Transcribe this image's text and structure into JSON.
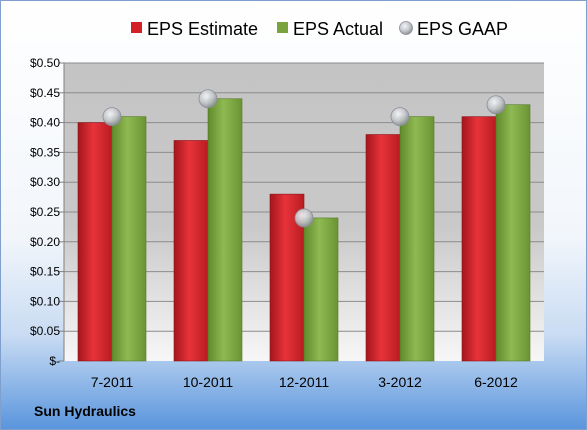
{
  "chart_data": {
    "type": "bar",
    "title": "",
    "xlabel": "",
    "ylabel": "",
    "categories": [
      "7-2011",
      "10-2011",
      "12-2011",
      "3-2012",
      "6-2012"
    ],
    "series": [
      {
        "name": "EPS Estimate",
        "kind": "bar",
        "color": "#d42027",
        "values": [
          0.4,
          0.37,
          0.28,
          0.38,
          0.41
        ]
      },
      {
        "name": "EPS Actual",
        "kind": "bar",
        "color": "#7aa33f",
        "values": [
          0.41,
          0.44,
          0.24,
          0.41,
          0.43
        ]
      },
      {
        "name": "EPS GAAP",
        "kind": "marker",
        "color": "#b8bcc2",
        "values": [
          0.41,
          0.44,
          0.24,
          0.41,
          0.43
        ]
      }
    ],
    "ylim": [
      0,
      0.5
    ],
    "yticks": [
      0,
      0.05,
      0.1,
      0.15,
      0.2,
      0.25,
      0.3,
      0.35,
      0.4,
      0.45,
      0.5
    ],
    "ytick_labels": [
      "$-",
      "$0.05",
      "$0.10",
      "$0.15",
      "$0.20",
      "$0.25",
      "$0.30",
      "$0.35",
      "$0.40",
      "$0.45",
      "$0.50"
    ],
    "grid": true,
    "legend_position": "top"
  },
  "company_name": "Sun Hydraulics"
}
